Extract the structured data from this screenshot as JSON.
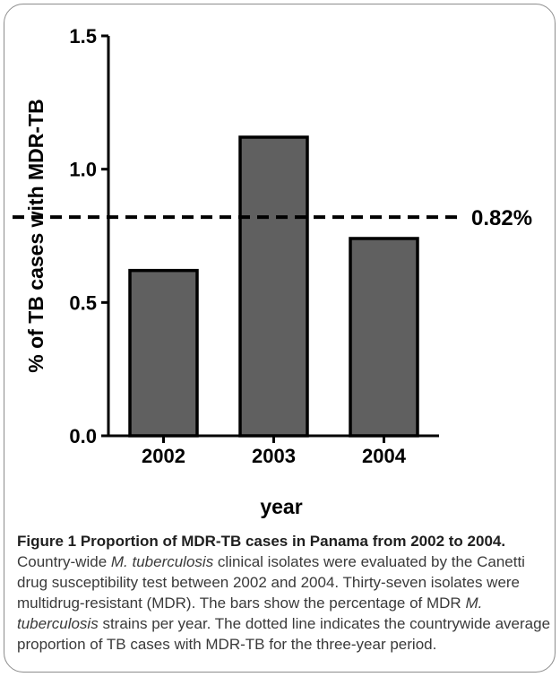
{
  "chart_data": {
    "type": "bar",
    "categories": [
      "2002",
      "2003",
      "2004"
    ],
    "values": [
      0.62,
      1.12,
      0.74
    ],
    "xlabel": "year",
    "ylabel": "% of TB cases with MDR-TB",
    "ylim": [
      0,
      1.5
    ],
    "yticks": [
      "0.0",
      "0.5",
      "1.0",
      "1.5"
    ],
    "reference_line": {
      "value": 0.82,
      "label": "0.82%",
      "style": "dashed"
    },
    "grid": false,
    "bar_color": "#606060"
  },
  "caption": {
    "title": "Figure 1 Proportion of MDR-TB cases in Panama from 2002 to 2004.",
    "text_1": " Country-wide ",
    "species_1": "M. tuberculosis",
    "text_2": " clinical isolates were evaluated by the Canetti drug susceptibility test between 2002 and 2004. Thirty-seven isolates were multidrug-resistant (MDR). The bars show the percentage of MDR ",
    "species_2": "M. tuberculosis",
    "text_3": " strains per year. The dotted line indicates the countrywide average proportion of TB cases with MDR-TB for the three-year period."
  }
}
